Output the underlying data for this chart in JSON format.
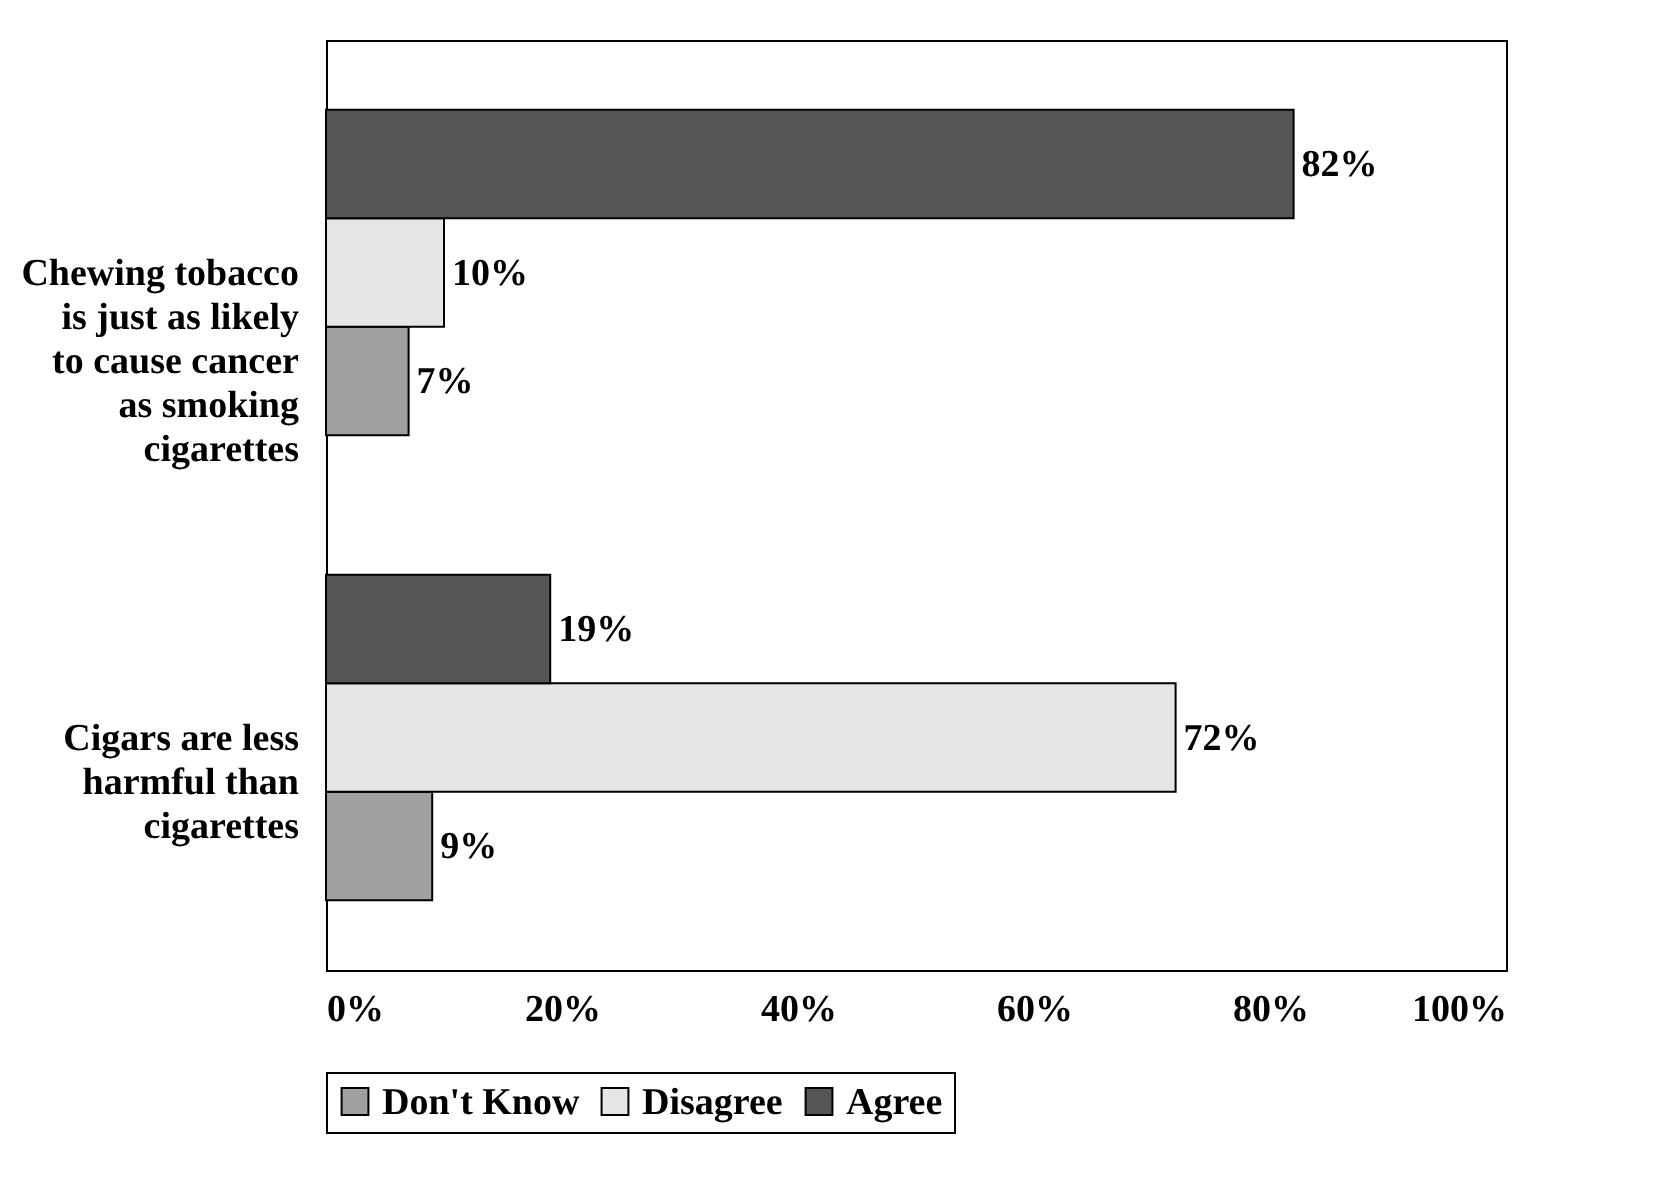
{
  "chart_data": {
    "type": "bar",
    "orientation": "horizontal",
    "categories": [
      "Chewing tobacco is just as likely to cause cancer as smoking cigarettes",
      "Cigars are less harmful than cigarettes"
    ],
    "series": [
      {
        "name": "Don't Know",
        "color": "#a0a0a0",
        "values": [
          7,
          9
        ],
        "value_labels": [
          "7%",
          "9%"
        ]
      },
      {
        "name": "Disagree",
        "color": "#e6e6e6",
        "values": [
          10,
          72
        ],
        "value_labels": [
          "10%",
          "72%"
        ]
      },
      {
        "name": "Agree",
        "color": "#555555",
        "values": [
          82,
          19
        ],
        "value_labels": [
          "82%",
          "19%"
        ]
      }
    ],
    "xlim": [
      0,
      100
    ],
    "xticks": [
      {
        "value": 0,
        "label": "0%"
      },
      {
        "value": 20,
        "label": "20%"
      },
      {
        "value": 40,
        "label": "40%"
      },
      {
        "value": 60,
        "label": "60%"
      },
      {
        "value": 80,
        "label": "80%"
      },
      {
        "value": 100,
        "label": "100%"
      }
    ],
    "grid": false,
    "legend": "bottom"
  }
}
